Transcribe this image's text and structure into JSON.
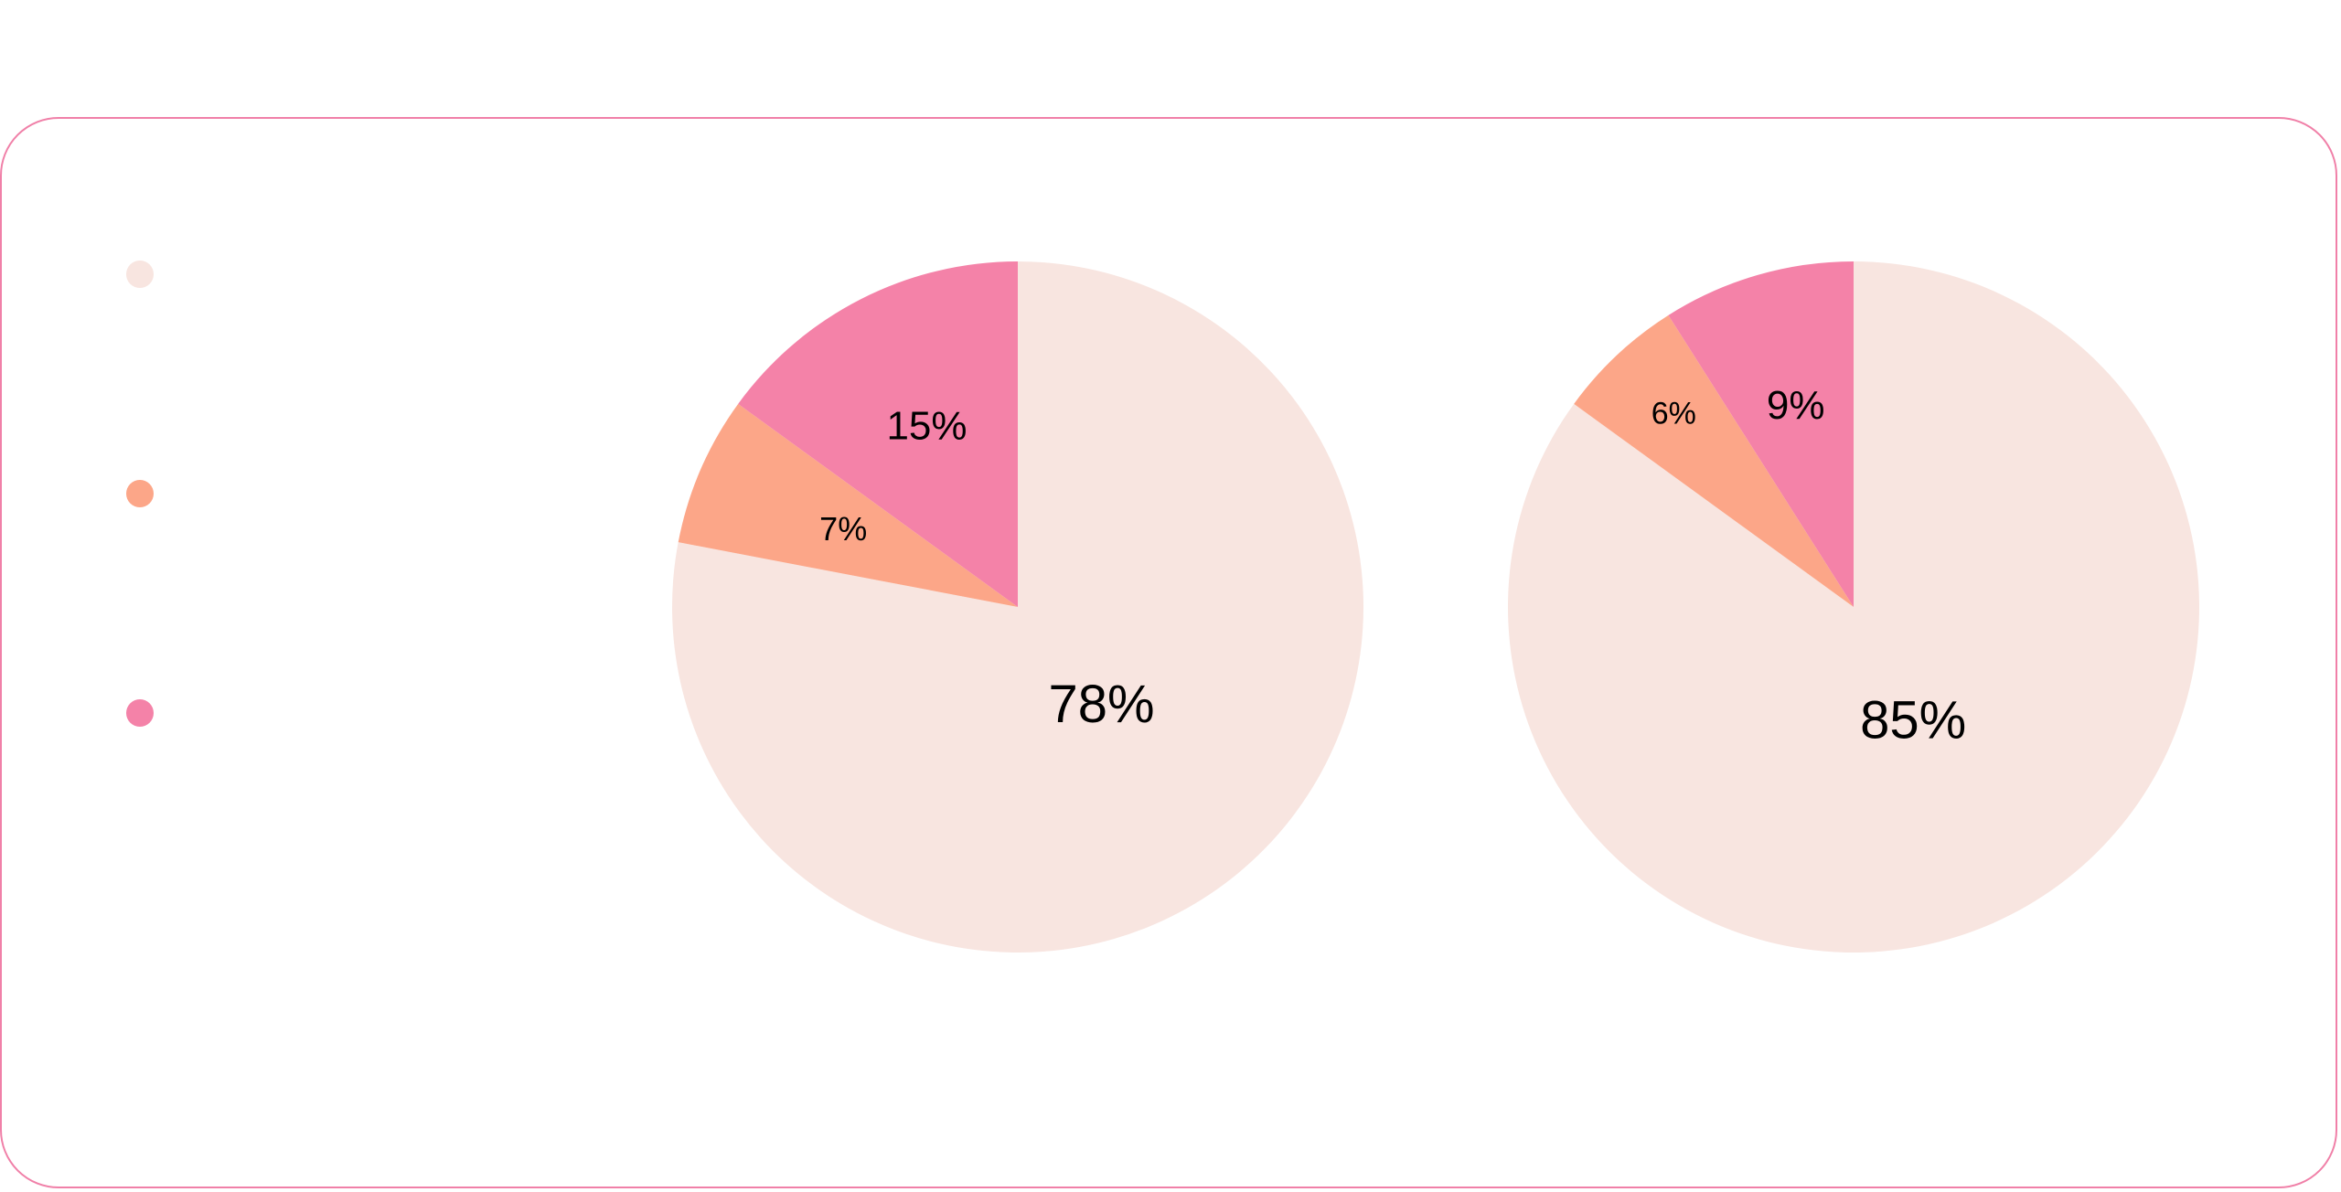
{
  "chart_data": [
    {
      "type": "pie",
      "title": "",
      "categories": [
        "",
        "",
        ""
      ],
      "values": [
        78,
        7,
        15
      ],
      "labels": [
        "78%",
        "7%",
        "15%"
      ],
      "colors": [
        "#f8e5e0",
        "#fca688",
        "#f482a8"
      ],
      "start_angle_deg": 0,
      "direction": "clockwise"
    },
    {
      "type": "pie",
      "title": "",
      "categories": [
        "",
        "",
        ""
      ],
      "values": [
        85,
        6,
        9
      ],
      "labels": [
        "85%",
        "6%",
        "9%"
      ],
      "colors": [
        "#f8e5e0",
        "#fca688",
        "#f482a8"
      ],
      "start_angle_deg": 0,
      "direction": "clockwise"
    }
  ],
  "legend": {
    "items": [
      {
        "label": "",
        "color": "#f8e5e0"
      },
      {
        "label": "",
        "color": "#fca688"
      },
      {
        "label": "",
        "color": "#f482a8"
      }
    ]
  },
  "colors": {
    "card_border": "#f080a8",
    "label_text": "#000000"
  }
}
